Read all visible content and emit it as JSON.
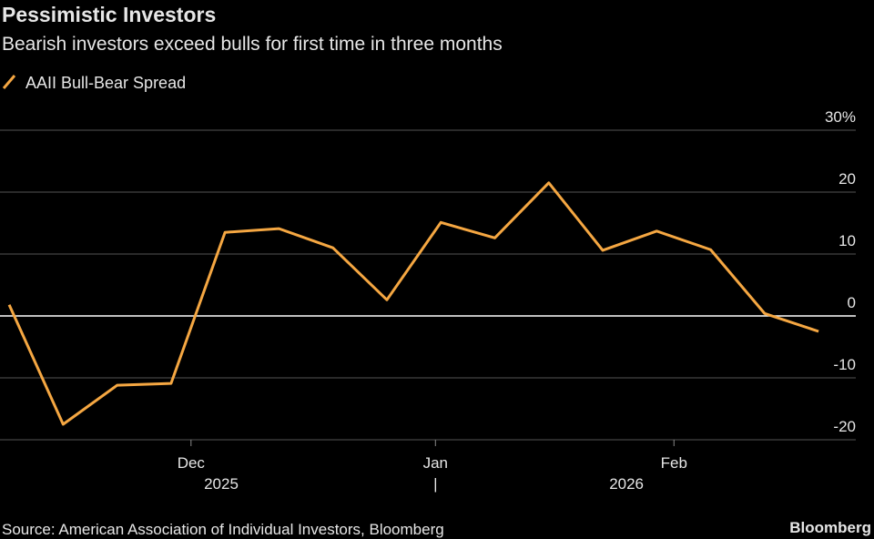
{
  "chart_data": {
    "type": "line",
    "title": "Pessimistic Investors",
    "subtitle": "Bearish investors exceed bulls for first time in three months",
    "source": "Source: American Association of Individual Investors, Bloomberg",
    "brand": "Bloomberg",
    "x": [
      0,
      1,
      2,
      3,
      4,
      5,
      6,
      7,
      8,
      9,
      10,
      11,
      12,
      13,
      14,
      15
    ],
    "series": [
      {
        "name": "AAII Bull-Bear Spread",
        "color": "#f5a742",
        "values": [
          1.8,
          -17.5,
          -11.2,
          -10.9,
          13.5,
          14.1,
          11.0,
          2.6,
          15.1,
          12.6,
          21.5,
          10.6,
          13.7,
          10.7,
          0.4,
          -2.5
        ]
      }
    ],
    "xlim": [
      -0.17,
      15.69
    ],
    "xticks": [
      {
        "value": 3.37,
        "label": "Dec"
      },
      {
        "value": 7.9,
        "label": "Jan"
      },
      {
        "value": 12.32,
        "label": "Feb"
      }
    ],
    "x_year_labels": [
      {
        "value": 3.93,
        "label": "2025"
      },
      {
        "value": 11.44,
        "label": "2026"
      }
    ],
    "year_separator": {
      "value": 7.9,
      "label": "|"
    },
    "ylim": [
      -20,
      30
    ],
    "yticks": [
      -20,
      -10,
      0,
      10,
      20,
      {
        "value": 30,
        "label": "30%"
      }
    ],
    "grid": true
  }
}
